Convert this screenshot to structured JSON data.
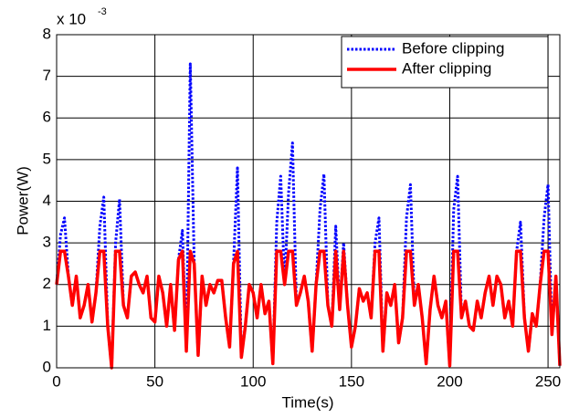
{
  "chart_data": {
    "type": "line",
    "xlabel": "Time(s)",
    "ylabel": "Power(W)",
    "multiplier": {
      "base": "x 10",
      "exponent": "-3"
    },
    "xlim": [
      0,
      256
    ],
    "xticks": [
      0,
      50,
      100,
      150,
      200,
      250
    ],
    "ylim": [
      0,
      8
    ],
    "yticks": [
      0,
      1,
      2,
      3,
      4,
      5,
      6,
      7,
      8
    ],
    "grid": true,
    "legend": "upper right",
    "x": [
      0,
      2,
      4,
      6,
      8,
      10,
      12,
      14,
      16,
      18,
      20,
      22,
      24,
      26,
      28,
      30,
      32,
      34,
      36,
      38,
      40,
      42,
      44,
      46,
      48,
      50,
      52,
      54,
      56,
      58,
      60,
      62,
      64,
      66,
      68,
      70,
      72,
      74,
      76,
      78,
      80,
      82,
      84,
      86,
      88,
      90,
      92,
      94,
      96,
      98,
      100,
      102,
      104,
      106,
      108,
      110,
      112,
      114,
      116,
      118,
      120,
      122,
      124,
      126,
      128,
      130,
      132,
      134,
      136,
      138,
      140,
      142,
      144,
      146,
      148,
      150,
      152,
      154,
      156,
      158,
      160,
      162,
      164,
      166,
      168,
      170,
      172,
      174,
      176,
      178,
      180,
      182,
      184,
      186,
      188,
      190,
      192,
      194,
      196,
      198,
      200,
      202,
      204,
      206,
      208,
      210,
      212,
      214,
      216,
      218,
      220,
      222,
      224,
      226,
      228,
      230,
      232,
      234,
      236,
      238,
      240,
      242,
      244,
      246,
      248,
      250,
      252,
      254,
      256
    ],
    "series": [
      {
        "name": "Before clipping",
        "color": "#0000ff",
        "style": "dotted",
        "values": [
          2.0,
          3.2,
          3.6,
          2.2,
          1.5,
          2.2,
          1.2,
          1.5,
          2.0,
          1.1,
          1.8,
          3.4,
          4.1,
          1.0,
          0.0,
          3.0,
          4.05,
          1.5,
          1.2,
          2.2,
          2.3,
          2.0,
          1.8,
          2.2,
          1.2,
          1.1,
          2.2,
          1.8,
          1.0,
          2.0,
          0.9,
          2.6,
          3.3,
          0.4,
          7.3,
          2.5,
          0.3,
          2.2,
          1.5,
          2.0,
          1.8,
          2.1,
          2.1,
          1.2,
          0.5,
          2.5,
          4.8,
          0.25,
          1.0,
          2.0,
          1.8,
          1.2,
          2.0,
          1.3,
          1.6,
          0.1,
          3.5,
          4.6,
          2.0,
          4.2,
          5.4,
          1.5,
          1.8,
          2.2,
          1.6,
          0.4,
          2.0,
          3.8,
          4.65,
          1.5,
          1.0,
          3.4,
          1.4,
          3.0,
          1.5,
          0.5,
          1.0,
          1.9,
          1.6,
          1.8,
          1.2,
          3.0,
          3.6,
          0.4,
          1.8,
          1.5,
          2.0,
          0.6,
          1.2,
          3.6,
          4.4,
          1.5,
          2.0,
          1.2,
          0.1,
          1.4,
          2.2,
          1.5,
          1.2,
          1.6,
          0.05,
          3.8,
          4.6,
          1.2,
          1.6,
          1.0,
          0.9,
          1.6,
          1.2,
          1.8,
          2.2,
          1.5,
          2.2,
          2.0,
          1.2,
          1.6,
          1.0,
          2.8,
          3.5,
          1.2,
          0.4,
          1.3,
          1.0,
          2.0,
          3.6,
          4.4,
          0.8,
          2.2,
          0.05
        ]
      },
      {
        "name": "After clipping",
        "color": "#ff0000",
        "style": "solid",
        "values": [
          2.0,
          2.8,
          2.8,
          2.2,
          1.5,
          2.2,
          1.2,
          1.5,
          2.0,
          1.1,
          1.8,
          2.8,
          2.8,
          1.0,
          0.0,
          2.8,
          2.8,
          1.5,
          1.2,
          2.2,
          2.3,
          2.0,
          1.8,
          2.2,
          1.2,
          1.1,
          2.2,
          1.8,
          1.0,
          2.0,
          0.9,
          2.6,
          2.8,
          0.4,
          2.8,
          2.5,
          0.3,
          2.2,
          1.5,
          2.0,
          1.8,
          2.1,
          2.1,
          1.2,
          0.5,
          2.5,
          2.8,
          0.25,
          1.0,
          2.0,
          1.8,
          1.2,
          2.0,
          1.3,
          1.6,
          0.1,
          2.8,
          2.8,
          2.0,
          2.8,
          2.8,
          1.5,
          1.8,
          2.2,
          1.6,
          0.4,
          2.0,
          2.8,
          2.8,
          1.5,
          1.0,
          2.8,
          1.4,
          2.8,
          1.5,
          0.5,
          1.0,
          1.9,
          1.6,
          1.8,
          1.2,
          2.8,
          2.8,
          0.4,
          1.8,
          1.5,
          2.0,
          0.6,
          1.2,
          2.8,
          2.8,
          1.5,
          2.0,
          1.2,
          0.1,
          1.4,
          2.2,
          1.5,
          1.2,
          1.6,
          0.05,
          2.8,
          2.8,
          1.2,
          1.6,
          1.0,
          0.9,
          1.6,
          1.2,
          1.8,
          2.2,
          1.5,
          2.2,
          2.0,
          1.2,
          1.6,
          1.0,
          2.8,
          2.8,
          1.2,
          0.4,
          1.3,
          1.0,
          2.0,
          2.8,
          2.8,
          0.8,
          2.2,
          0.05
        ]
      }
    ]
  }
}
